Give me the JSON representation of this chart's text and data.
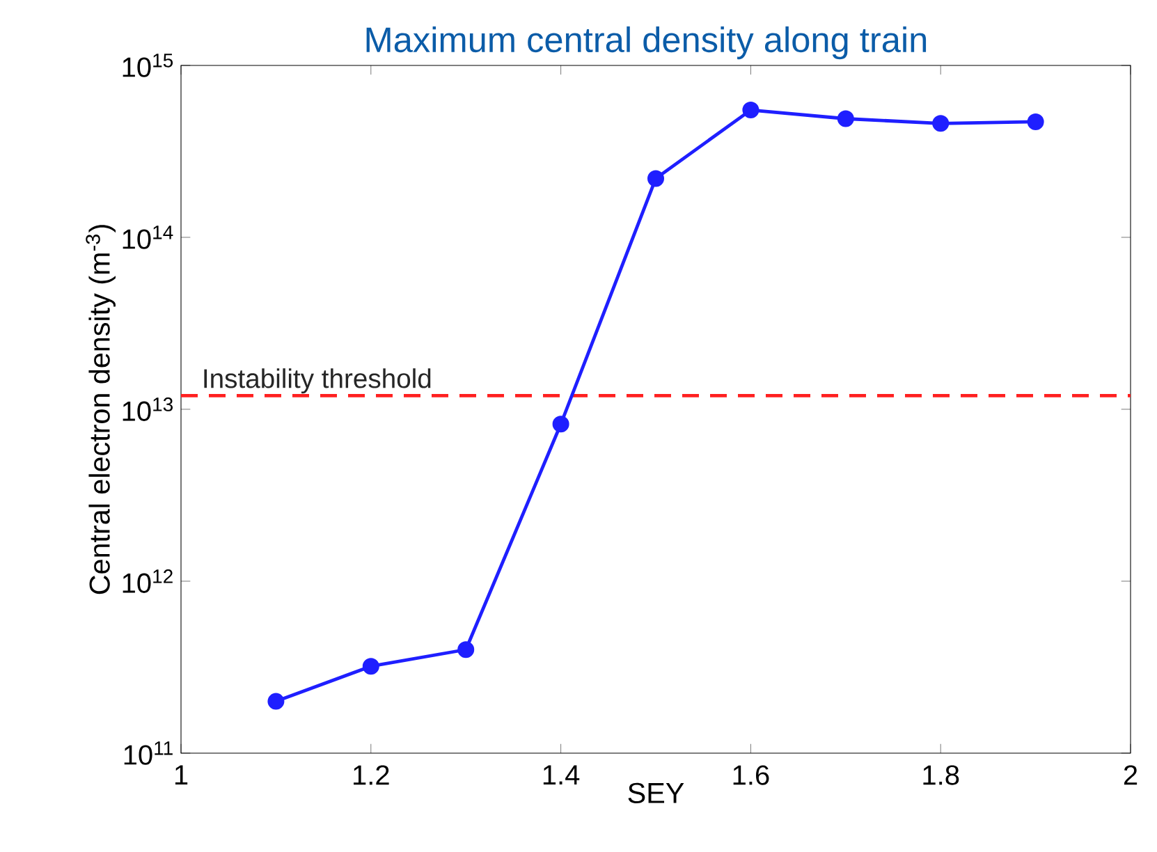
{
  "chart_data": {
    "type": "line",
    "title": "Maximum central density along train",
    "xlabel": "SEY",
    "ylabel": "Central electron density (m$^{-3}$)",
    "x": [
      1.1,
      1.2,
      1.3,
      1.4,
      1.5,
      1.6,
      1.7,
      1.8,
      1.9
    ],
    "series": [
      {
        "color": "#1f1fff",
        "values": [
          200000000000.0,
          320000000000.0,
          400000000000.0,
          8200000000000.0,
          220000000000000.0,
          550000000000000.0,
          490000000000000.0,
          460000000000000.0,
          470000000000000.0
        ]
      }
    ],
    "marker": "circle",
    "line_style": "solid",
    "log": "y",
    "xlim": [
      1,
      2
    ],
    "xticks": [
      1,
      1.2,
      1.4,
      1.6,
      1.8,
      2
    ],
    "ylim": [
      100000000000.0,
      1000000000000000.0
    ],
    "yticks": [
      {
        "value": 100000000000.0,
        "label": "10$^{11}$"
      },
      {
        "value": 1000000000000.0,
        "label": "10$^{12}$"
      },
      {
        "value": 10000000000000.0,
        "label": "10$^{13}$"
      },
      {
        "value": 100000000000000.0,
        "label": "10$^{14}$"
      },
      {
        "value": 1000000000000000.0,
        "label": "10$^{15}$"
      }
    ],
    "ref_lines": [
      {
        "axis": "y",
        "value": 12000000000000.0,
        "label": "Instability threshold",
        "color": "#ff2020",
        "line_style": "dashed"
      }
    ]
  }
}
